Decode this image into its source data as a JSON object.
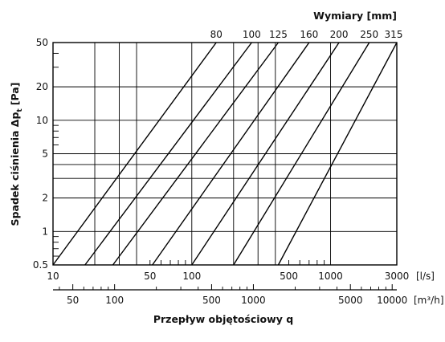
{
  "chart_data": {
    "type": "line",
    "title": "Wymiary [mm]",
    "xlabel": "Przepływ objętościowy q",
    "ylabel": "Spadek ciśnienia Δp",
    "ylabel_sub": "t",
    "ylabel_unit": "[Pa]",
    "x_unit": "[l/s]",
    "x2_unit": "[m³/h]",
    "x_scale": "log",
    "y_scale": "log",
    "xlim": [
      10,
      3000
    ],
    "ylim": [
      0.5,
      50
    ],
    "grid": true,
    "x_ticks": [
      "10",
      "50",
      "100",
      "500",
      "1000",
      "3000"
    ],
    "x2_ticks": [
      "50",
      "100",
      "500",
      "1000",
      "5000",
      "10000"
    ],
    "y_ticks": [
      "0.5",
      "1",
      "2",
      "5",
      "10",
      "20",
      "50"
    ],
    "series": [
      {
        "name": "80",
        "points": [
          [
            10,
            0.5
          ],
          [
            150,
            50
          ]
        ]
      },
      {
        "name": "100",
        "points": [
          [
            17,
            0.5
          ],
          [
            270,
            50
          ]
        ]
      },
      {
        "name": "125",
        "points": [
          [
            27,
            0.5
          ],
          [
            420,
            50
          ]
        ]
      },
      {
        "name": "160",
        "points": [
          [
            52,
            0.5
          ],
          [
            700,
            50
          ]
        ]
      },
      {
        "name": "200",
        "points": [
          [
            100,
            0.5
          ],
          [
            1150,
            50
          ]
        ]
      },
      {
        "name": "250",
        "points": [
          [
            200,
            0.5
          ],
          [
            1900,
            50
          ]
        ]
      },
      {
        "name": "315",
        "points": [
          [
            420,
            0.5
          ],
          [
            3000,
            50
          ]
        ]
      }
    ]
  }
}
